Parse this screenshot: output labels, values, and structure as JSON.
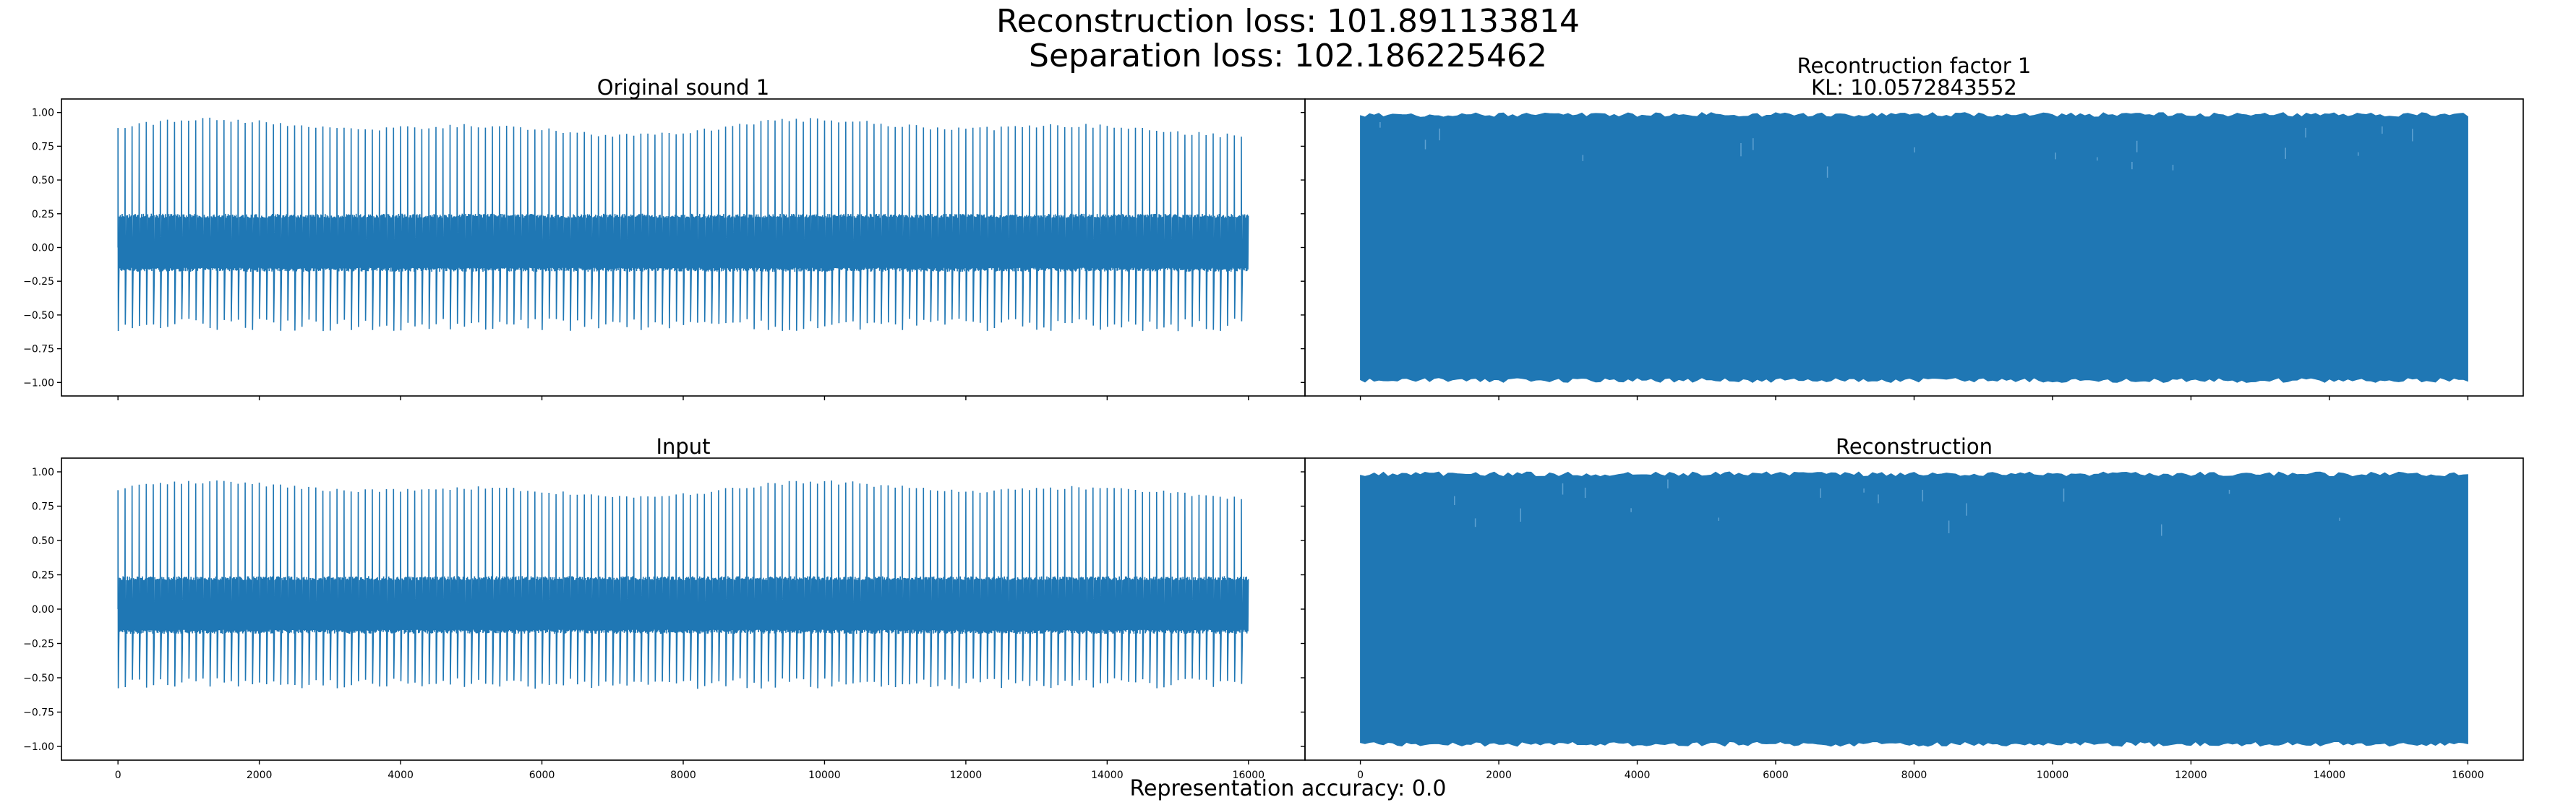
{
  "figure": {
    "title_line1": "Reconstruction loss: 101.891133814",
    "title_line2": "Separation loss: 102.186225462",
    "footer": "Representation accuracy: 0.0",
    "line_color": "#1f77b4"
  },
  "chart_data": [
    {
      "type": "line",
      "title": "Original sound 1",
      "xlim": [
        -800,
        16800
      ],
      "ylim": [
        -1.1,
        1.1
      ],
      "xticks": [
        0,
        2000,
        4000,
        6000,
        8000,
        10000,
        12000,
        14000,
        16000
      ],
      "xtick_labels": [],
      "yticks": [
        1.0,
        0.75,
        0.5,
        0.25,
        0.0,
        -0.25,
        -0.5,
        -0.75,
        -1.0
      ],
      "ytick_labels": [
        "1.00",
        "0.75",
        "0.50",
        "0.25",
        "0.00",
        "−0.25",
        "−0.50",
        "−0.75",
        "−1.00"
      ],
      "series": [
        {
          "style": "periodic_spike_train",
          "x_range": [
            0,
            16000
          ],
          "num_peaks": 160,
          "peak_max": 0.97,
          "peak_min": 0.75,
          "trough_min": -0.62,
          "trough_max": -0.48,
          "body_band": [
            -0.18,
            0.25
          ]
        }
      ]
    },
    {
      "type": "line",
      "title": "Recontruction factor 1\nKL: 10.0572843552",
      "xlim": [
        -800,
        16800
      ],
      "ylim": [
        -1.1,
        1.1
      ],
      "xticks": [
        0,
        2000,
        4000,
        6000,
        8000,
        10000,
        12000,
        14000,
        16000
      ],
      "xtick_labels": [],
      "yticks": [
        1.0,
        0.75,
        0.5,
        0.25,
        0.0,
        -0.25,
        -0.5,
        -0.75,
        -1.0
      ],
      "ytick_labels": [],
      "series": [
        {
          "style": "saturated_noise",
          "x_range": [
            0,
            16000
          ],
          "band": [
            -1.0,
            1.0
          ]
        }
      ]
    },
    {
      "type": "line",
      "title": "Input",
      "xlim": [
        -800,
        16800
      ],
      "ylim": [
        -1.1,
        1.1
      ],
      "xticks": [
        0,
        2000,
        4000,
        6000,
        8000,
        10000,
        12000,
        14000,
        16000
      ],
      "xtick_labels": [
        "0",
        "2000",
        "4000",
        "6000",
        "8000",
        "10000",
        "12000",
        "14000",
        "16000"
      ],
      "yticks": [
        1.0,
        0.75,
        0.5,
        0.25,
        0.0,
        -0.25,
        -0.5,
        -0.75,
        -1.0
      ],
      "ytick_labels": [
        "1.00",
        "0.75",
        "0.50",
        "0.25",
        "0.00",
        "−0.25",
        "−0.50",
        "−0.75",
        "−1.00"
      ],
      "series": [
        {
          "style": "periodic_spike_train",
          "x_range": [
            0,
            16000
          ],
          "num_peaks": 160,
          "peak_max": 0.95,
          "peak_min": 0.74,
          "trough_min": -0.58,
          "trough_max": -0.47,
          "body_band": [
            -0.18,
            0.24
          ]
        }
      ]
    },
    {
      "type": "line",
      "title": "Reconstruction",
      "xlim": [
        -800,
        16800
      ],
      "ylim": [
        -1.1,
        1.1
      ],
      "xticks": [
        0,
        2000,
        4000,
        6000,
        8000,
        10000,
        12000,
        14000,
        16000
      ],
      "xtick_labels": [
        "0",
        "2000",
        "4000",
        "6000",
        "8000",
        "10000",
        "12000",
        "14000",
        "16000"
      ],
      "yticks": [
        1.0,
        0.75,
        0.5,
        0.25,
        0.0,
        -0.25,
        -0.5,
        -0.75,
        -1.0
      ],
      "ytick_labels": [],
      "series": [
        {
          "style": "saturated_noise",
          "x_range": [
            0,
            16000
          ],
          "band": [
            -1.0,
            1.0
          ]
        }
      ]
    }
  ]
}
